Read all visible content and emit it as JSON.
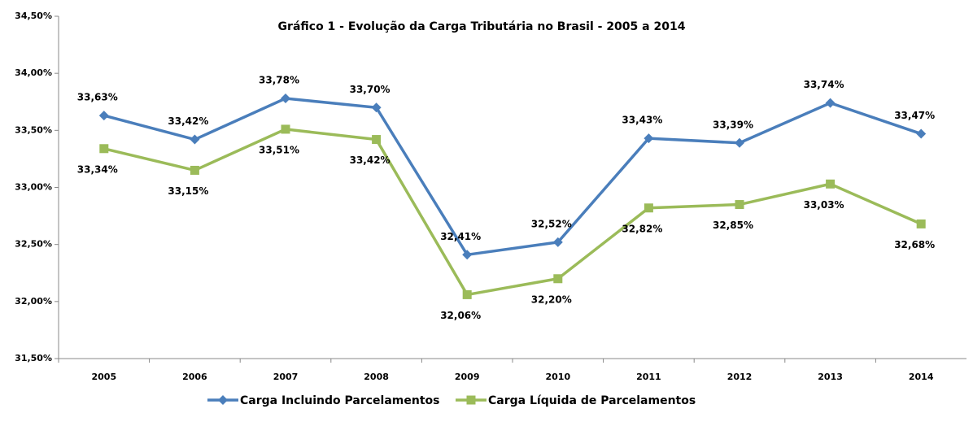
{
  "chart_data": {
    "type": "line",
    "title": "Gráfico 1 - Evolução da Carga Tributária no Brasil - 2005 a 2014",
    "categories": [
      "2005",
      "2006",
      "2007",
      "2008",
      "2009",
      "2010",
      "2011",
      "2012",
      "2013",
      "2014"
    ],
    "series": [
      {
        "name": "Carga Incluindo Parcelamentos",
        "color": "#4a7ebb",
        "marker": "diamond",
        "values": [
          33.63,
          33.42,
          33.78,
          33.7,
          32.41,
          32.52,
          33.43,
          33.39,
          33.74,
          33.47
        ],
        "value_labels": [
          "33,63%",
          "33,42%",
          "33,78%",
          "33,70%",
          "32,41%",
          "32,52%",
          "33,43%",
          "33,39%",
          "33,74%",
          "33,47%"
        ]
      },
      {
        "name": "Carga Líquida de Parcelamentos",
        "color": "#9bbb59",
        "marker": "square",
        "values": [
          33.34,
          33.15,
          33.51,
          33.42,
          32.06,
          32.2,
          32.82,
          32.85,
          33.03,
          32.68
        ],
        "value_labels": [
          "33,34%",
          "33,15%",
          "33,51%",
          "33,42%",
          "32,06%",
          "32,20%",
          "32,82%",
          "32,85%",
          "33,03%",
          "32,68%"
        ]
      }
    ],
    "ylim": [
      31.5,
      34.5
    ],
    "yticks": [
      {
        "value": 31.5,
        "label": "31,50%"
      },
      {
        "value": 32.0,
        "label": "32,00%"
      },
      {
        "value": 32.5,
        "label": "32,50%"
      },
      {
        "value": 33.0,
        "label": "33,00%"
      },
      {
        "value": 33.5,
        "label": "33,50%"
      },
      {
        "value": 34.0,
        "label": "34,00%"
      },
      {
        "value": 34.5,
        "label": "34,50%"
      }
    ],
    "legend": "bottom",
    "grid": false
  }
}
